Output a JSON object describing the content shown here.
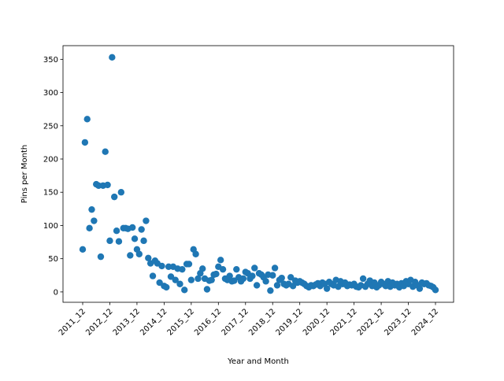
{
  "chart_data": {
    "type": "scatter",
    "xlabel": "Year and Month",
    "ylabel": "Pins per Month",
    "color": "#1f77b4",
    "categories": [
      "2011_12",
      null,
      null,
      null,
      null,
      null,
      null,
      null,
      null,
      null,
      null,
      null,
      "2012_12",
      null,
      null,
      null,
      null,
      null,
      null,
      null,
      null,
      null,
      null,
      null,
      "2013_12",
      null,
      null,
      null,
      null,
      null,
      null,
      null,
      null,
      null,
      null,
      null,
      "2014_12",
      null,
      null,
      null,
      null,
      null,
      null,
      null,
      null,
      null,
      null,
      null,
      "2015_12",
      null,
      null,
      null,
      null,
      null,
      null,
      null,
      null,
      null,
      null,
      null,
      "2016_12",
      null,
      null,
      null,
      null,
      null,
      null,
      null,
      null,
      null,
      null,
      null,
      "2017_12",
      null,
      null,
      null,
      null,
      null,
      null,
      null,
      null,
      null,
      null,
      null,
      "2018_12",
      null,
      null,
      null,
      null,
      null,
      null,
      null,
      null,
      null,
      null,
      null,
      "2019_12",
      null,
      null,
      null,
      null,
      null,
      null,
      null,
      null,
      null,
      null,
      null,
      "2020_12",
      null,
      null,
      null,
      null,
      null,
      null,
      null,
      null,
      null,
      null,
      null,
      "2021_12",
      null,
      null,
      null,
      null,
      null,
      null,
      null,
      null,
      null,
      null,
      null,
      "2022_12",
      null,
      null,
      null,
      null,
      null,
      null,
      null,
      null,
      null,
      null,
      null,
      "2023_12",
      null,
      null,
      null,
      null,
      null,
      null,
      null,
      null,
      null,
      null,
      null,
      "2024_12"
    ],
    "values": [
      64,
      225,
      260,
      96,
      124,
      107,
      162,
      160,
      53,
      160,
      211,
      161,
      77,
      353,
      143,
      92,
      76,
      150,
      96,
      96,
      95,
      55,
      97,
      80,
      64,
      57,
      94,
      77,
      107,
      51,
      43,
      24,
      47,
      43,
      14,
      39,
      9,
      7,
      38,
      23,
      38,
      18,
      35,
      12,
      34,
      3,
      42,
      42,
      18,
      64,
      57,
      20,
      28,
      35,
      20,
      4,
      17,
      18,
      26,
      27,
      38,
      48,
      34,
      20,
      18,
      24,
      16,
      17,
      34,
      22,
      16,
      20,
      30,
      28,
      20,
      24,
      36,
      10,
      28,
      26,
      22,
      16,
      26,
      2,
      25,
      36,
      10,
      18,
      21,
      12,
      10,
      12,
      22,
      9,
      17,
      14,
      16,
      14,
      12,
      9,
      7,
      10,
      9,
      11,
      13,
      9,
      14,
      12,
      5,
      15,
      12,
      10,
      18,
      8,
      16,
      12,
      14,
      9,
      11,
      10,
      12,
      8,
      7,
      10,
      20,
      8,
      12,
      17,
      9,
      14,
      7,
      10,
      15,
      12,
      9,
      16,
      8,
      14,
      10,
      12,
      7,
      13,
      9,
      16,
      12,
      18,
      8,
      15,
      10,
      5,
      14,
      12,
      13,
      10,
      9,
      7,
      3
    ],
    "ylim": [
      -15.55,
      370.55
    ],
    "yticks": [
      0,
      50,
      100,
      150,
      200,
      250,
      300,
      350
    ]
  }
}
